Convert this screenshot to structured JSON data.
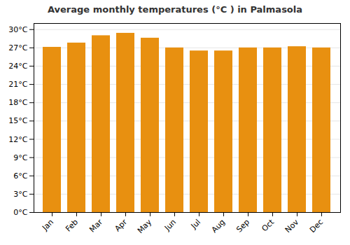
{
  "chart_data": {
    "type": "bar",
    "title": "Average monthly temperatures (°C ) in Palmasola",
    "categories": [
      "Jan",
      "Feb",
      "Mar",
      "Apr",
      "May",
      "Jun",
      "Jul",
      "Aug",
      "Sep",
      "Oct",
      "Nov",
      "Dec"
    ],
    "values": [
      27.1,
      27.8,
      29.0,
      29.4,
      28.6,
      27.0,
      26.5,
      26.5,
      27.0,
      27.0,
      27.2,
      27.0
    ],
    "color": "#E89010",
    "ylim": [
      0,
      31
    ],
    "yticks": [
      {
        "value": 0,
        "label": "0°C"
      },
      {
        "value": 3,
        "label": "3°C"
      },
      {
        "value": 6,
        "label": "6°C"
      },
      {
        "value": 9,
        "label": "9°C"
      },
      {
        "value": 12,
        "label": "12°C"
      },
      {
        "value": 15,
        "label": "15°C"
      },
      {
        "value": 18,
        "label": "18°C"
      },
      {
        "value": 21,
        "label": "21°C"
      },
      {
        "value": 24,
        "label": "24°C"
      },
      {
        "value": 27,
        "label": "27°C"
      },
      {
        "value": 30,
        "label": "30°C"
      }
    ],
    "grid": true
  }
}
